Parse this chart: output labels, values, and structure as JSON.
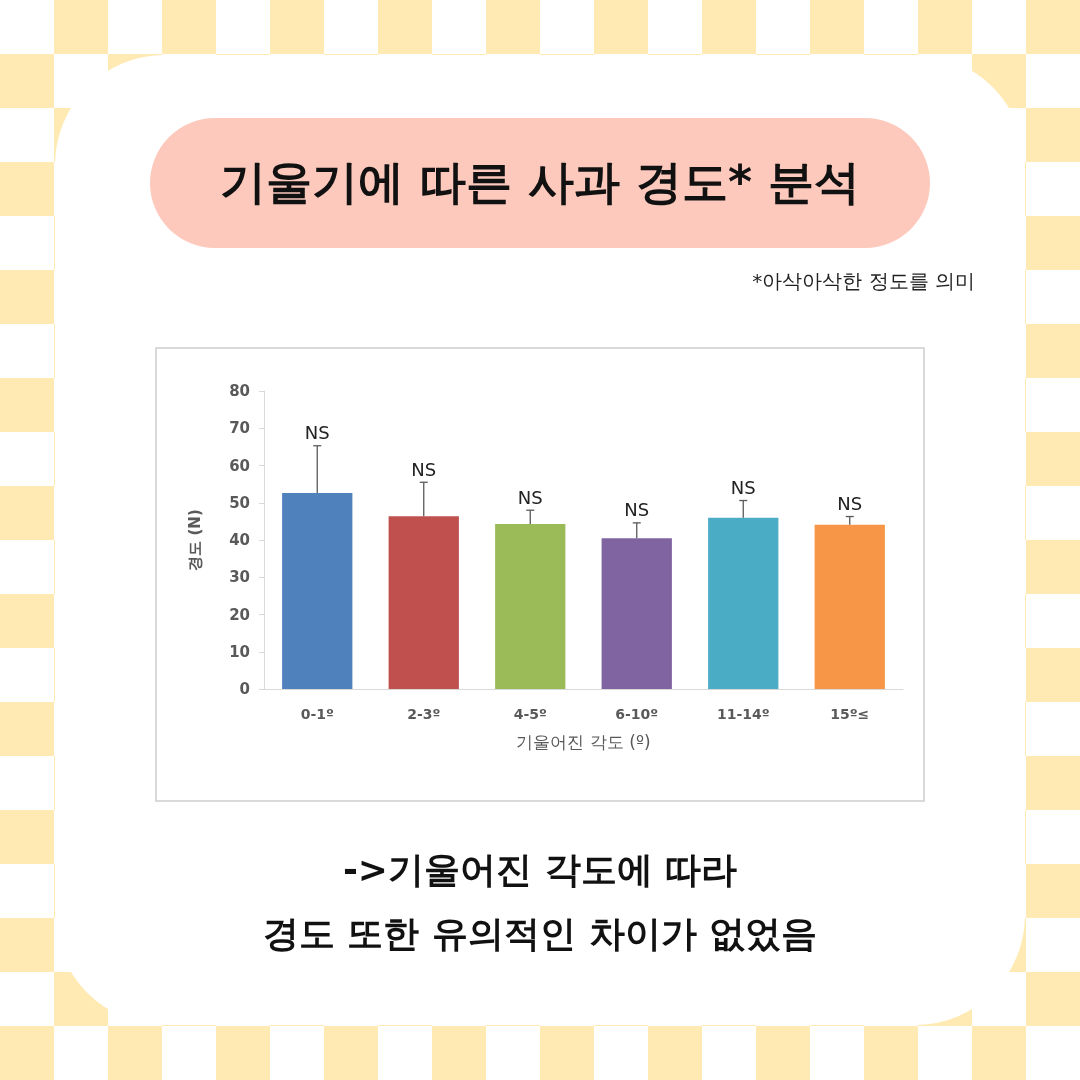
{
  "chart_data": {
    "type": "bar",
    "title": "기울기에 따른 사과 경도* 분석",
    "subtitle": "*아삭아삭한 정도를 의미",
    "xlabel": "기울어진 각도 (º)",
    "ylabel": "경도 (N)",
    "categories": [
      "0-1º",
      "2-3º",
      "4-5º",
      "6-10º",
      "11-14º",
      "15º≤"
    ],
    "values": [
      52.6,
      46.4,
      44.3,
      40.5,
      46.0,
      44.1
    ],
    "colors": [
      "#4f81bd",
      "#c0504d",
      "#9bbb59",
      "#8064a2",
      "#4bacc6",
      "#f79646"
    ],
    "errors": [
      [
        52.6,
        65.3
      ],
      [
        46.4,
        55.5
      ],
      [
        44.3,
        48.0
      ],
      [
        40.5,
        44.6
      ],
      [
        46.0,
        50.6
      ],
      [
        44.1,
        46.3
      ]
    ],
    "ylim": [
      0,
      80
    ],
    "yticks": [
      0,
      10,
      20,
      30,
      40,
      50,
      60,
      70,
      80
    ],
    "grid": false,
    "annotations": [
      {
        "text": "NS",
        "x": "0-1º",
        "y": 65.3
      },
      {
        "text": "NS",
        "x": "2-3º",
        "y": 55.5
      },
      {
        "text": "NS",
        "x": "4-5º",
        "y": 48.0
      },
      {
        "text": "NS",
        "x": "6-10º",
        "y": 44.6
      },
      {
        "text": "NS",
        "x": "11-14º",
        "y": 50.6
      },
      {
        "text": "NS",
        "x": "15º≤",
        "y": 46.3
      },
      "->기울어진 각도에 따라\n경도 또한 유의적인 차이가 없었음"
    ]
  }
}
